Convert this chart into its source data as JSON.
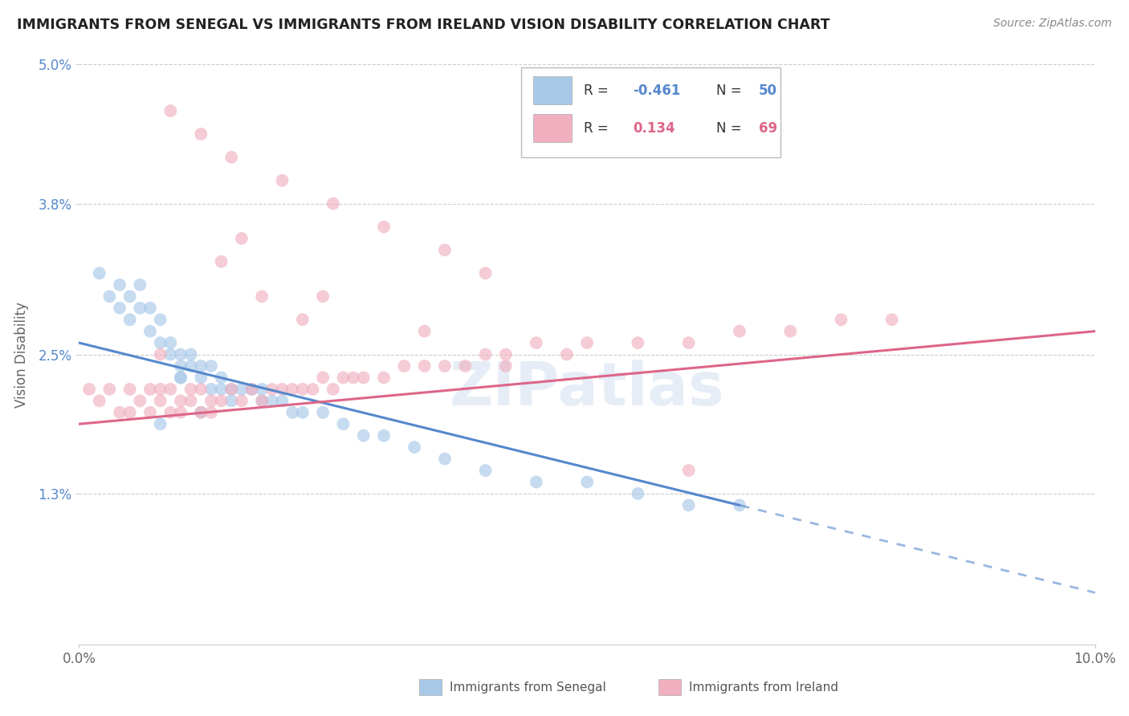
{
  "title": "IMMIGRANTS FROM SENEGAL VS IMMIGRANTS FROM IRELAND VISION DISABILITY CORRELATION CHART",
  "source": "Source: ZipAtlas.com",
  "ylabel": "Vision Disability",
  "xlim": [
    0.0,
    0.1
  ],
  "ylim": [
    0.0,
    0.05
  ],
  "xtick_vals": [
    0.0,
    0.1
  ],
  "xtick_labels": [
    "0.0%",
    "10.0%"
  ],
  "ytick_vals": [
    0.013,
    0.025,
    0.038,
    0.05
  ],
  "ytick_labels": [
    "1.3%",
    "2.5%",
    "3.8%",
    "5.0%"
  ],
  "grid_color": "#cccccc",
  "background_color": "#ffffff",
  "blue_color": "#a8c8e8",
  "pink_color": "#f0b0c0",
  "blue_line_color": "#5588cc",
  "pink_line_color": "#dd6688",
  "blue_R": -0.461,
  "blue_N": 50,
  "pink_R": 0.134,
  "pink_N": 69,
  "blue_line_x0": 0.0,
  "blue_line_y0": 0.026,
  "blue_line_x1": 0.065,
  "blue_line_y1": 0.012,
  "blue_line_dash_x0": 0.06,
  "blue_line_dash_x1": 0.1,
  "pink_line_x0": 0.0,
  "pink_line_y0": 0.019,
  "pink_line_x1": 0.1,
  "pink_line_y1": 0.027,
  "blue_scatter_x": [
    0.002,
    0.003,
    0.004,
    0.004,
    0.005,
    0.005,
    0.006,
    0.006,
    0.007,
    0.007,
    0.008,
    0.008,
    0.009,
    0.009,
    0.01,
    0.01,
    0.01,
    0.011,
    0.011,
    0.012,
    0.012,
    0.013,
    0.013,
    0.014,
    0.014,
    0.015,
    0.015,
    0.016,
    0.017,
    0.018,
    0.018,
    0.019,
    0.02,
    0.021,
    0.022,
    0.024,
    0.026,
    0.028,
    0.03,
    0.033,
    0.036,
    0.04,
    0.045,
    0.05,
    0.055,
    0.06,
    0.065,
    0.01,
    0.012,
    0.008
  ],
  "blue_scatter_y": [
    0.032,
    0.03,
    0.031,
    0.029,
    0.03,
    0.028,
    0.031,
    0.029,
    0.029,
    0.027,
    0.028,
    0.026,
    0.026,
    0.025,
    0.025,
    0.024,
    0.023,
    0.025,
    0.024,
    0.024,
    0.023,
    0.024,
    0.022,
    0.023,
    0.022,
    0.022,
    0.021,
    0.022,
    0.022,
    0.022,
    0.021,
    0.021,
    0.021,
    0.02,
    0.02,
    0.02,
    0.019,
    0.018,
    0.018,
    0.017,
    0.016,
    0.015,
    0.014,
    0.014,
    0.013,
    0.012,
    0.012,
    0.023,
    0.02,
    0.019
  ],
  "pink_scatter_x": [
    0.001,
    0.002,
    0.003,
    0.004,
    0.005,
    0.005,
    0.006,
    0.007,
    0.007,
    0.008,
    0.008,
    0.009,
    0.009,
    0.01,
    0.01,
    0.011,
    0.011,
    0.012,
    0.012,
    0.013,
    0.013,
    0.014,
    0.015,
    0.016,
    0.017,
    0.018,
    0.019,
    0.02,
    0.021,
    0.022,
    0.023,
    0.024,
    0.025,
    0.026,
    0.027,
    0.028,
    0.03,
    0.032,
    0.034,
    0.036,
    0.038,
    0.04,
    0.042,
    0.045,
    0.048,
    0.05,
    0.055,
    0.06,
    0.065,
    0.07,
    0.075,
    0.08,
    0.009,
    0.012,
    0.015,
    0.02,
    0.025,
    0.03,
    0.036,
    0.04,
    0.018,
    0.014,
    0.022,
    0.008,
    0.016,
    0.024,
    0.034,
    0.042,
    0.06
  ],
  "pink_scatter_y": [
    0.022,
    0.021,
    0.022,
    0.02,
    0.022,
    0.02,
    0.021,
    0.022,
    0.02,
    0.021,
    0.022,
    0.02,
    0.022,
    0.021,
    0.02,
    0.021,
    0.022,
    0.022,
    0.02,
    0.021,
    0.02,
    0.021,
    0.022,
    0.021,
    0.022,
    0.021,
    0.022,
    0.022,
    0.022,
    0.022,
    0.022,
    0.023,
    0.022,
    0.023,
    0.023,
    0.023,
    0.023,
    0.024,
    0.024,
    0.024,
    0.024,
    0.025,
    0.025,
    0.026,
    0.025,
    0.026,
    0.026,
    0.026,
    0.027,
    0.027,
    0.028,
    0.028,
    0.046,
    0.044,
    0.042,
    0.04,
    0.038,
    0.036,
    0.034,
    0.032,
    0.03,
    0.033,
    0.028,
    0.025,
    0.035,
    0.03,
    0.027,
    0.024,
    0.015
  ],
  "watermark": "ZIPatlas",
  "legend_label_blue": "Immigrants from Senegal",
  "legend_label_pink": "Immigrants from Ireland"
}
